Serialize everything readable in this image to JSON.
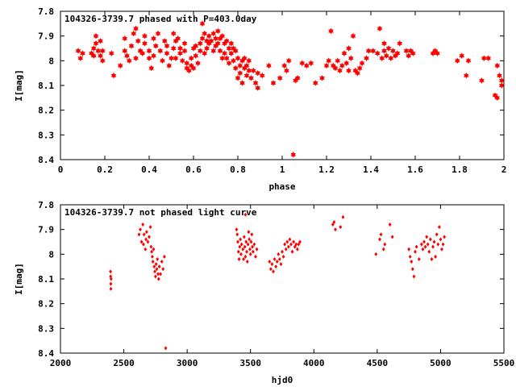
{
  "colors": {
    "points": "#ff0000",
    "axes": "#000000",
    "background": "#ffffff"
  },
  "chart_data": [
    {
      "type": "scatter",
      "title": "104326-3739.7 phased with P=403.0day",
      "xlabel": "phase",
      "ylabel": "I[mag]",
      "xlim": [
        0,
        2
      ],
      "ylim": [
        7.8,
        8.4
      ],
      "y_inverted": true,
      "grid": false,
      "marker": "filled-star",
      "xticks": [
        "0",
        "0.2",
        "0.4",
        "0.6",
        "0.8",
        "1",
        "1.2",
        "1.4",
        "1.6",
        "1.8",
        "2"
      ],
      "yticks": [
        "7.8",
        "7.9",
        "8",
        "8.1",
        "8.2",
        "8.3",
        "8.4"
      ],
      "points": [
        [
          0.08,
          7.96
        ],
        [
          0.09,
          7.99
        ],
        [
          0.1,
          7.97
        ],
        [
          0.14,
          7.97
        ],
        [
          0.15,
          7.95
        ],
        [
          0.15,
          7.98
        ],
        [
          0.16,
          7.9
        ],
        [
          0.16,
          7.93
        ],
        [
          0.17,
          7.96
        ],
        [
          0.18,
          7.92
        ],
        [
          0.18,
          7.98
        ],
        [
          0.19,
          7.96
        ],
        [
          0.19,
          8.0
        ],
        [
          0.24,
          8.06
        ],
        [
          0.23,
          7.97
        ],
        [
          0.27,
          8.02
        ],
        [
          0.29,
          7.96
        ],
        [
          0.29,
          7.91
        ],
        [
          0.3,
          7.98
        ],
        [
          0.31,
          8.0
        ],
        [
          0.32,
          7.94
        ],
        [
          0.33,
          7.89
        ],
        [
          0.34,
          7.99
        ],
        [
          0.35,
          7.92
        ],
        [
          0.34,
          7.87
        ],
        [
          0.36,
          7.96
        ],
        [
          0.37,
          7.97
        ],
        [
          0.38,
          7.93
        ],
        [
          0.38,
          7.9
        ],
        [
          0.4,
          7.99
        ],
        [
          0.4,
          7.96
        ],
        [
          0.41,
          8.03
        ],
        [
          0.42,
          7.91
        ],
        [
          0.42,
          7.98
        ],
        [
          0.43,
          7.94
        ],
        [
          0.44,
          7.89
        ],
        [
          0.45,
          7.96
        ],
        [
          0.46,
          8.0
        ],
        [
          0.47,
          7.92
        ],
        [
          0.48,
          7.97
        ],
        [
          0.48,
          7.94
        ],
        [
          0.49,
          8.02
        ],
        [
          0.5,
          7.99
        ],
        [
          0.51,
          7.95
        ],
        [
          0.51,
          7.89
        ],
        [
          0.52,
          7.99
        ],
        [
          0.52,
          7.92
        ],
        [
          0.53,
          7.91
        ],
        [
          0.54,
          7.95
        ],
        [
          0.54,
          7.97
        ],
        [
          0.55,
          8.0
        ],
        [
          0.56,
          7.96
        ],
        [
          0.56,
          7.93
        ],
        [
          0.57,
          8.03
        ],
        [
          0.57,
          8.01
        ],
        [
          0.58,
          8.04
        ],
        [
          0.59,
          8.02
        ],
        [
          0.59,
          7.99
        ],
        [
          0.6,
          7.95
        ],
        [
          0.6,
          8.03
        ],
        [
          0.61,
          7.98
        ],
        [
          0.61,
          7.94
        ],
        [
          0.62,
          8.01
        ],
        [
          0.63,
          7.96
        ],
        [
          0.63,
          7.93
        ],
        [
          0.64,
          7.91
        ],
        [
          0.64,
          7.85
        ],
        [
          0.65,
          7.97
        ],
        [
          0.65,
          7.89
        ],
        [
          0.66,
          7.92
        ],
        [
          0.66,
          7.95
        ],
        [
          0.67,
          7.93
        ],
        [
          0.67,
          7.9
        ],
        [
          0.68,
          7.92
        ],
        [
          0.69,
          7.96
        ],
        [
          0.69,
          7.89
        ],
        [
          0.7,
          7.94
        ],
        [
          0.7,
          7.91
        ],
        [
          0.71,
          7.88
        ],
        [
          0.71,
          7.93
        ],
        [
          0.72,
          7.91
        ],
        [
          0.72,
          7.96
        ],
        [
          0.73,
          7.9
        ],
        [
          0.73,
          7.99
        ],
        [
          0.74,
          7.93
        ],
        [
          0.74,
          7.97
        ],
        [
          0.75,
          7.92
        ],
        [
          0.75,
          7.99
        ],
        [
          0.76,
          7.95
        ],
        [
          0.76,
          8.01
        ],
        [
          0.77,
          7.97
        ],
        [
          0.77,
          7.93
        ],
        [
          0.78,
          7.95
        ],
        [
          0.78,
          8.0
        ],
        [
          0.79,
          7.96
        ],
        [
          0.79,
          8.03
        ],
        [
          0.8,
          7.99
        ],
        [
          0.8,
          8.07
        ],
        [
          0.81,
          8.02
        ],
        [
          0.81,
          8.05
        ],
        [
          0.82,
          8.0
        ],
        [
          0.82,
          8.09
        ],
        [
          0.83,
          8.03
        ],
        [
          0.83,
          7.99
        ],
        [
          0.84,
          8.06
        ],
        [
          0.84,
          8.02
        ],
        [
          0.85,
          8.04
        ],
        [
          0.85,
          8.0
        ],
        [
          0.86,
          8.07
        ],
        [
          0.87,
          8.04
        ],
        [
          0.88,
          8.09
        ],
        [
          0.89,
          8.05
        ],
        [
          0.89,
          8.11
        ],
        [
          0.91,
          8.06
        ],
        [
          0.94,
          8.02
        ],
        [
          0.96,
          8.09
        ],
        [
          0.99,
          8.07
        ],
        [
          1.01,
          8.02
        ],
        [
          1.02,
          8.04
        ],
        [
          1.03,
          8.0
        ],
        [
          1.05,
          8.38
        ],
        [
          1.06,
          8.08
        ],
        [
          1.07,
          8.07
        ],
        [
          1.09,
          8.01
        ],
        [
          1.11,
          8.02
        ],
        [
          1.13,
          8.01
        ],
        [
          1.15,
          8.09
        ],
        [
          1.18,
          8.07
        ],
        [
          1.2,
          8.02
        ],
        [
          1.21,
          8.0
        ],
        [
          1.22,
          7.88
        ],
        [
          1.23,
          8.02
        ],
        [
          1.24,
          8.03
        ],
        [
          1.25,
          8.0
        ],
        [
          1.26,
          8.04
        ],
        [
          1.27,
          8.02
        ],
        [
          1.28,
          7.97
        ],
        [
          1.29,
          8.01
        ],
        [
          1.3,
          7.95
        ],
        [
          1.3,
          8.04
        ],
        [
          1.31,
          7.99
        ],
        [
          1.32,
          7.9
        ],
        [
          1.33,
          8.04
        ],
        [
          1.34,
          8.05
        ],
        [
          1.35,
          8.03
        ],
        [
          1.36,
          8.01
        ],
        [
          1.38,
          7.99
        ],
        [
          1.39,
          7.96
        ],
        [
          1.41,
          7.96
        ],
        [
          1.43,
          7.97
        ],
        [
          1.44,
          7.87
        ],
        [
          1.45,
          7.99
        ],
        [
          1.46,
          7.96
        ],
        [
          1.46,
          7.93
        ],
        [
          1.47,
          7.98
        ],
        [
          1.48,
          7.95
        ],
        [
          1.49,
          7.99
        ],
        [
          1.5,
          7.96
        ],
        [
          1.51,
          7.98
        ],
        [
          1.52,
          7.97
        ],
        [
          1.53,
          7.93
        ],
        [
          1.56,
          7.96
        ],
        [
          1.57,
          7.98
        ],
        [
          1.58,
          7.96
        ],
        [
          1.59,
          7.97
        ],
        [
          1.68,
          7.97
        ],
        [
          1.69,
          7.96
        ],
        [
          1.7,
          7.97
        ],
        [
          1.79,
          8.0
        ],
        [
          1.81,
          7.98
        ],
        [
          1.83,
          8.06
        ],
        [
          1.84,
          8.0
        ],
        [
          1.9,
          8.08
        ],
        [
          1.91,
          7.99
        ],
        [
          1.93,
          7.99
        ],
        [
          1.96,
          8.14
        ],
        [
          1.97,
          8.15
        ],
        [
          1.97,
          8.02
        ],
        [
          1.98,
          8.06
        ],
        [
          1.99,
          8.08
        ],
        [
          1.99,
          8.1
        ]
      ]
    },
    {
      "type": "scatter",
      "title": "104326-3739.7 not phased light curve",
      "xlabel": "hjd0",
      "ylabel": "I[mag]",
      "xlim": [
        2000,
        5500
      ],
      "ylim": [
        7.8,
        8.4
      ],
      "y_inverted": true,
      "grid": false,
      "marker": "small-diamond",
      "xticks": [
        "2000",
        "2500",
        "3000",
        "3500",
        "4000",
        "4500",
        "5000",
        "5500"
      ],
      "yticks": [
        "7.8",
        "7.9",
        "8",
        "8.1",
        "8.2",
        "8.3",
        "8.4"
      ],
      "points": [
        [
          2395,
          8.07
        ],
        [
          2396,
          8.09
        ],
        [
          2397,
          8.12
        ],
        [
          2398,
          8.14
        ],
        [
          2400,
          8.1
        ],
        [
          2620,
          7.92
        ],
        [
          2630,
          7.9
        ],
        [
          2640,
          7.95
        ],
        [
          2650,
          7.88
        ],
        [
          2655,
          7.96
        ],
        [
          2660,
          7.92
        ],
        [
          2670,
          7.98
        ],
        [
          2675,
          7.94
        ],
        [
          2680,
          7.91
        ],
        [
          2690,
          7.95
        ],
        [
          2700,
          7.93
        ],
        [
          2710,
          7.89
        ],
        [
          2715,
          7.97
        ],
        [
          2720,
          7.99
        ],
        [
          2725,
          8.01
        ],
        [
          2730,
          8.03
        ],
        [
          2735,
          7.98
        ],
        [
          2740,
          8.05
        ],
        [
          2745,
          8.07
        ],
        [
          2750,
          8.09
        ],
        [
          2755,
          8.04
        ],
        [
          2760,
          8.06
        ],
        [
          2765,
          8.02
        ],
        [
          2770,
          8.08
        ],
        [
          2775,
          8.1
        ],
        [
          2780,
          8.05
        ],
        [
          2790,
          8.08
        ],
        [
          2800,
          8.03
        ],
        [
          2810,
          8.06
        ],
        [
          2820,
          8.01
        ],
        [
          2830,
          8.38
        ],
        [
          3390,
          7.9
        ],
        [
          3395,
          7.92
        ],
        [
          3400,
          7.95
        ],
        [
          3405,
          7.99
        ],
        [
          3410,
          8.02
        ],
        [
          3415,
          7.97
        ],
        [
          3420,
          7.94
        ],
        [
          3425,
          8.0
        ],
        [
          3430,
          7.96
        ],
        [
          3440,
          7.98
        ],
        [
          3445,
          8.02
        ],
        [
          3450,
          7.93
        ],
        [
          3455,
          7.97
        ],
        [
          3460,
          8.01
        ],
        [
          3465,
          7.95
        ],
        [
          3470,
          7.99
        ],
        [
          3475,
          8.03
        ],
        [
          3480,
          7.96
        ],
        [
          3485,
          7.91
        ],
        [
          3490,
          7.94
        ],
        [
          3495,
          7.98
        ],
        [
          3500,
          8.0
        ],
        [
          3505,
          7.95
        ],
        [
          3510,
          7.92
        ],
        [
          3515,
          7.97
        ],
        [
          3520,
          7.99
        ],
        [
          3530,
          7.96
        ],
        [
          3540,
          8.01
        ],
        [
          3550,
          7.98
        ],
        [
          3460,
          7.84
        ],
        [
          3650,
          8.03
        ],
        [
          3660,
          8.06
        ],
        [
          3670,
          8.04
        ],
        [
          3680,
          8.07
        ],
        [
          3690,
          8.02
        ],
        [
          3700,
          8.05
        ],
        [
          3710,
          8.03
        ],
        [
          3720,
          8.0
        ],
        [
          3730,
          8.02
        ],
        [
          3740,
          8.04
        ],
        [
          3750,
          7.99
        ],
        [
          3760,
          8.01
        ],
        [
          3770,
          7.96
        ],
        [
          3780,
          7.98
        ],
        [
          3790,
          7.95
        ],
        [
          3800,
          7.97
        ],
        [
          3810,
          7.94
        ],
        [
          3820,
          7.96
        ],
        [
          3830,
          7.99
        ],
        [
          3840,
          7.95
        ],
        [
          3850,
          7.97
        ],
        [
          3860,
          7.96
        ],
        [
          3870,
          7.98
        ],
        [
          3880,
          7.96
        ],
        [
          3890,
          7.95
        ],
        [
          4150,
          7.88
        ],
        [
          4160,
          7.87
        ],
        [
          4170,
          7.9
        ],
        [
          4210,
          7.89
        ],
        [
          4230,
          7.85
        ],
        [
          4490,
          8.0
        ],
        [
          4520,
          7.94
        ],
        [
          4530,
          7.92
        ],
        [
          4550,
          7.98
        ],
        [
          4560,
          7.96
        ],
        [
          4600,
          7.88
        ],
        [
          4620,
          7.93
        ],
        [
          4750,
          7.98
        ],
        [
          4760,
          8.01
        ],
        [
          4770,
          8.03
        ],
        [
          4780,
          8.06
        ],
        [
          4790,
          8.09
        ],
        [
          4800,
          7.99
        ],
        [
          4810,
          7.97
        ],
        [
          4830,
          8.02
        ],
        [
          4850,
          7.96
        ],
        [
          4860,
          7.98
        ],
        [
          4870,
          7.95
        ],
        [
          4880,
          7.97
        ],
        [
          4890,
          7.93
        ],
        [
          4900,
          7.96
        ],
        [
          4910,
          7.99
        ],
        [
          4920,
          7.94
        ],
        [
          4930,
          8.02
        ],
        [
          4940,
          7.97
        ],
        [
          4950,
          7.95
        ],
        [
          4960,
          8.01
        ],
        [
          4970,
          7.92
        ],
        [
          4980,
          7.96
        ],
        [
          4990,
          7.89
        ],
        [
          5000,
          7.94
        ],
        [
          5010,
          7.98
        ],
        [
          5020,
          7.96
        ],
        [
          5030,
          7.93
        ]
      ]
    }
  ]
}
